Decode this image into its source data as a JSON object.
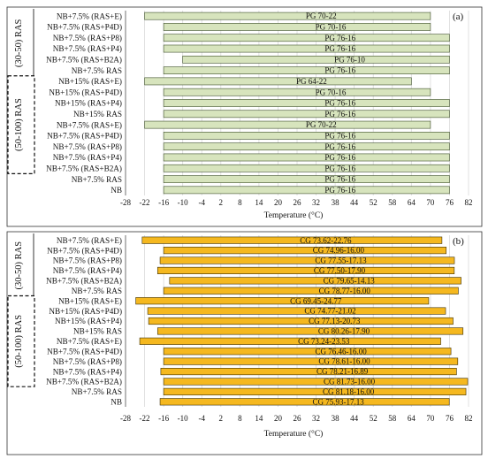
{
  "chart_data": [
    {
      "type": "bar",
      "orientation": "horizontal",
      "panel_label": "(a)",
      "xlabel": "Temperature (°C)",
      "xlim": [
        -28,
        82
      ],
      "xticks": [
        "-28",
        "-22",
        "-16",
        "-10",
        "-4",
        "2",
        "8",
        "14",
        "20",
        "26",
        "32",
        "38",
        "44",
        "52",
        "58",
        "64",
        "70",
        "76",
        "82"
      ],
      "groups": [
        {
          "label": "(30-50) RAS",
          "rows": [
            0,
            5
          ]
        },
        {
          "label": "(50-100) RAS",
          "rows": [
            6,
            14
          ]
        }
      ],
      "bar_color": "#d7e4bd",
      "bar_stroke": "#3d4f2a",
      "categories": [
        "NB+7.5% (RAS+E)",
        "NB+7.5% (RAS+P4D)",
        "NB+7.5% (RAS+P8)",
        "NB+7.5% (RAS+P4)",
        "NB+7.5% (RAS+B2A)",
        "NB+7.5% RAS",
        "NB+15% (RAS+E)",
        "NB+15% (RAS+P4D)",
        "NB+15% (RAS+P4)",
        "NB+15% RAS",
        "NB+7.5% (RAS+E)",
        "NB+7.5% (RAS+P4D)",
        "NB+7.5% (RAS+P8)",
        "NB+7.5% (RAS+P4)",
        "NB+7.5% (RAS+B2A)",
        "NB+7.5% RAS",
        "NB"
      ],
      "bar_labels": [
        "PG 70-22",
        "PG 70-16",
        "PG 76-16",
        "PG 76-16",
        "PG 76-10",
        "PG 76-16",
        "PG 64-22",
        "PG 70-16",
        "PG 76-16",
        "PG 76-16",
        "PG 70-22",
        "PG 76-16",
        "PG 76-16",
        "PG 76-16",
        "PG 76-16",
        "PG 76-16",
        "PG 76-16"
      ],
      "low": [
        -22,
        -16,
        -16,
        -16,
        -10,
        -16,
        -22,
        -16,
        -16,
        -16,
        -22,
        -16,
        -16,
        -16,
        -16,
        -16,
        -16
      ],
      "high": [
        70,
        70,
        76,
        76,
        76,
        76,
        64,
        70,
        76,
        76,
        70,
        76,
        76,
        76,
        76,
        76,
        76
      ]
    },
    {
      "type": "bar",
      "orientation": "horizontal",
      "panel_label": "(b)",
      "xlabel": "Temperature (°C)",
      "xlim": [
        -28,
        82
      ],
      "xticks": [
        "-28",
        "-22",
        "-16",
        "-10",
        "-4",
        "2",
        "8",
        "14",
        "20",
        "26",
        "32",
        "38",
        "44",
        "52",
        "58",
        "64",
        "70",
        "76",
        "82"
      ],
      "groups": [
        {
          "label": "(30-50) RAS",
          "rows": [
            0,
            5
          ]
        },
        {
          "label": "(50-100) RAS",
          "rows": [
            6,
            14
          ]
        }
      ],
      "bar_color": "#f5b81f",
      "bar_stroke": "#3b2e06",
      "categories": [
        "NB+7.5% (RAS+E)",
        "NB+7.5% (RAS+P4D)",
        "NB+7.5% (RAS+P8)",
        "NB+7.5% (RAS+P4)",
        "NB+7.5% (RAS+B2A)",
        "NB+7.5% RAS",
        "NB+15% (RAS+E)",
        "NB+15% (RAS+P4D)",
        "NB+15% (RAS+P4)",
        "NB+15% RAS",
        "NB+7.5% (RAS+E)",
        "NB+7.5% (RAS+P4D)",
        "NB+7.5% (RAS+P8)",
        "NB+7.5% (RAS+P4)",
        "NB+7.5% (RAS+B2A)",
        "NB+7.5% RAS",
        "NB"
      ],
      "bar_labels": [
        "CG 73.62-22.76",
        "CG 74.96-16.00",
        "CG 77.55-17.13",
        "CG 77.50-17.90",
        "CG 79.65-14.13",
        "CG 78.77-16.00",
        "CG 69.45-24.77",
        "CG 74.77-21.02",
        "CG 77.13-20.73",
        "CG 80.26-17.90",
        "CG 73.24-23.53",
        "CG 76.46-16.00",
        "CG 78.61-16.00",
        "CG 78.21-16.89",
        "CG 81.73-16.00",
        "CG 81.18-16.00",
        "CG 75.93-17.13"
      ],
      "low": [
        -22.76,
        -16.0,
        -17.13,
        -17.9,
        -14.13,
        -16.0,
        -24.77,
        -21.02,
        -20.73,
        -17.9,
        -23.53,
        -16.0,
        -16.0,
        -16.89,
        -16.0,
        -16.0,
        -17.13
      ],
      "high": [
        73.62,
        74.96,
        77.55,
        77.5,
        79.65,
        78.77,
        69.45,
        74.77,
        77.13,
        80.26,
        73.24,
        76.46,
        78.61,
        78.21,
        81.73,
        81.18,
        75.93
      ]
    }
  ]
}
